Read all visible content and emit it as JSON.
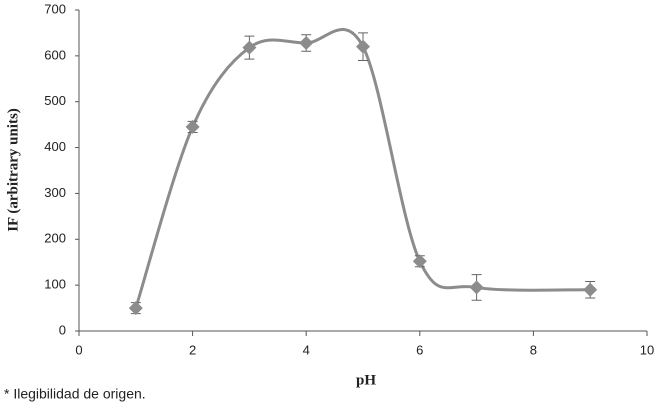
{
  "chart_data": {
    "type": "line",
    "xlabel": "pH",
    "ylabel": "IF (arbitrary units)",
    "x": [
      1,
      2,
      3,
      4,
      5,
      6,
      7,
      9
    ],
    "values": [
      50,
      445,
      618,
      628,
      620,
      152,
      95,
      90
    ],
    "errors": [
      12,
      12,
      25,
      18,
      30,
      12,
      28,
      18
    ],
    "color": "#8c8c8c",
    "xlim": [
      0,
      10
    ],
    "xticks": [
      0,
      2,
      4,
      6,
      8,
      10
    ],
    "ylim": [
      0,
      700
    ],
    "yticks": [
      0,
      100,
      200,
      300,
      400,
      500,
      600,
      700
    ],
    "grid": false,
    "smooth": true,
    "footnote": "* Ilegibilidad de origen."
  }
}
